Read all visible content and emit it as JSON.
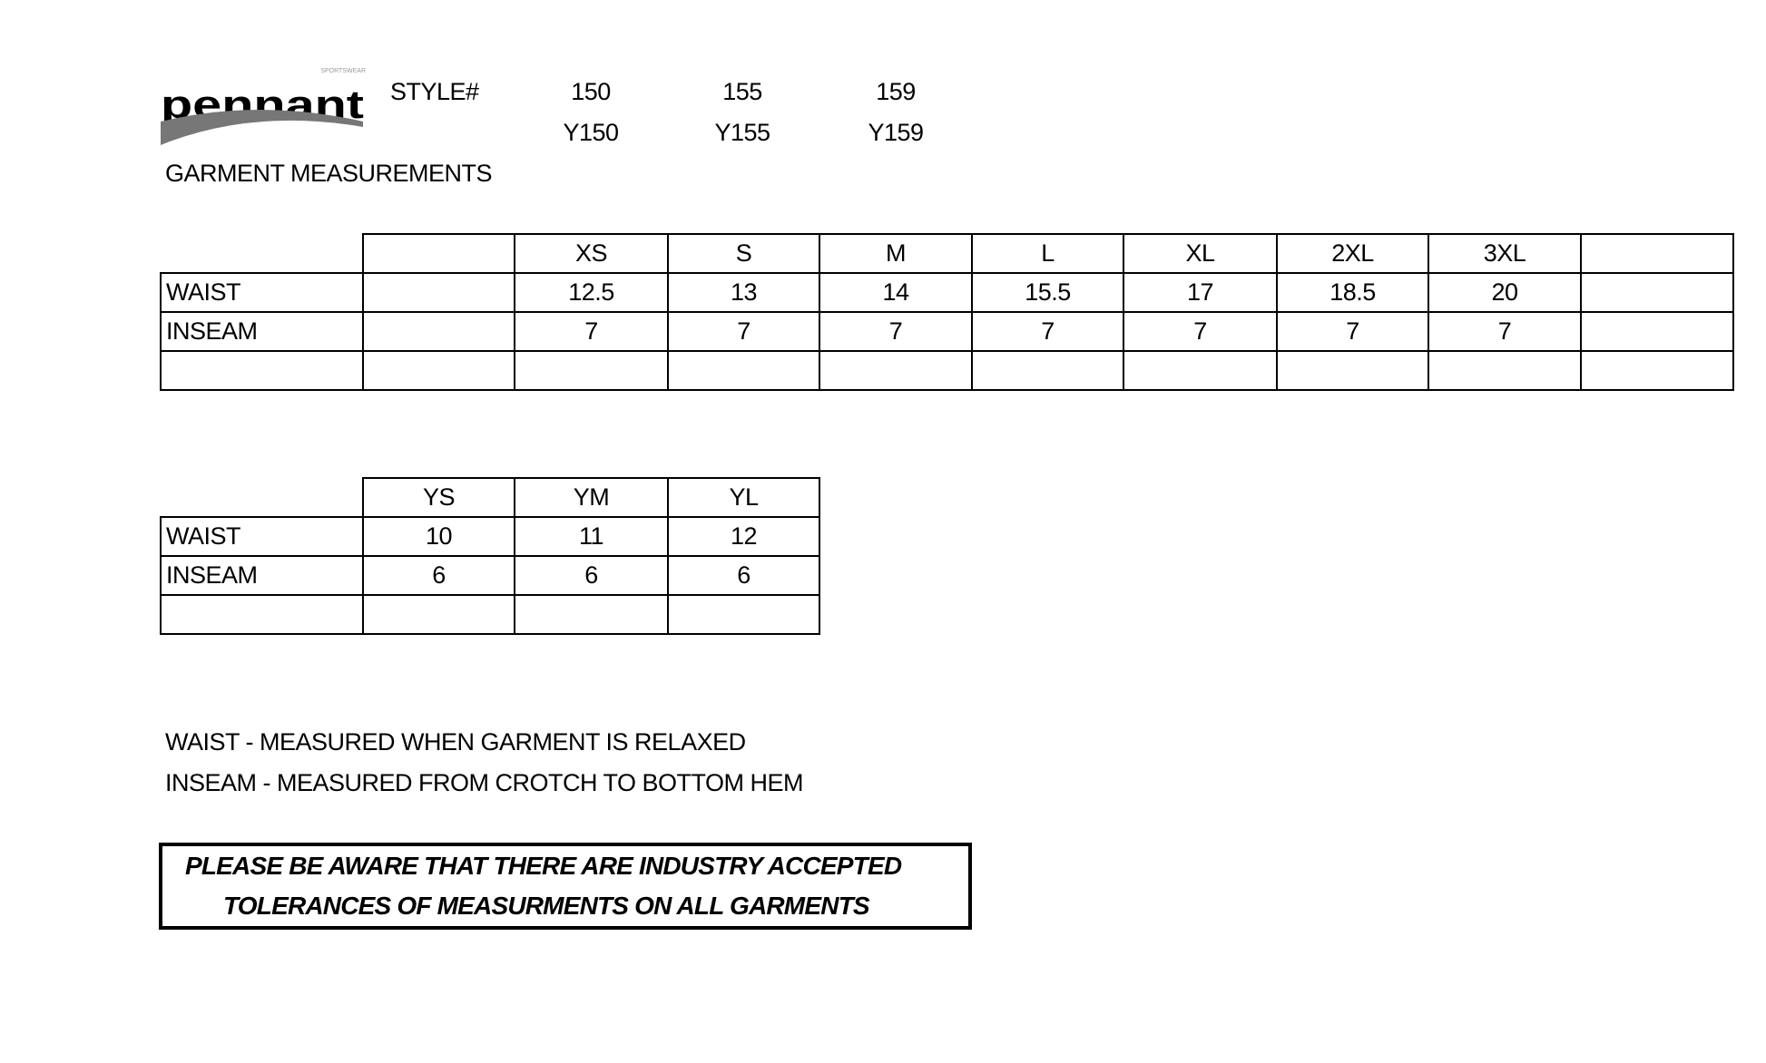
{
  "header": {
    "logo_text": "pennant",
    "logo_subtext": "SPORTSWEAR",
    "style_label": "STYLE#",
    "styles": [
      {
        "adult": "150",
        "youth": "Y150"
      },
      {
        "adult": "155",
        "youth": "Y155"
      },
      {
        "adult": "159",
        "youth": "Y159"
      }
    ],
    "title": "GARMENT MEASUREMENTS"
  },
  "adult_table": {
    "sizes": [
      "",
      "XS",
      "S",
      "M",
      "L",
      "XL",
      "2XL",
      "3XL",
      ""
    ],
    "rows": [
      {
        "label": "WAIST",
        "values": [
          "",
          "12.5",
          "13",
          "14",
          "15.5",
          "17",
          "18.5",
          "20",
          ""
        ]
      },
      {
        "label": "INSEAM",
        "values": [
          "",
          "7",
          "7",
          "7",
          "7",
          "7",
          "7",
          "7",
          ""
        ]
      },
      {
        "label": "",
        "values": [
          "",
          "",
          "",
          "",
          "",
          "",
          "",
          "",
          ""
        ]
      }
    ]
  },
  "youth_table": {
    "sizes": [
      "YS",
      "YM",
      "YL"
    ],
    "rows": [
      {
        "label": "WAIST",
        "values": [
          "10",
          "11",
          "12"
        ]
      },
      {
        "label": "INSEAM",
        "values": [
          "6",
          "6",
          "6"
        ]
      },
      {
        "label": "",
        "values": [
          "",
          "",
          ""
        ]
      }
    ]
  },
  "notes": [
    "WAIST - MEASURED WHEN GARMENT IS RELAXED",
    "INSEAM - MEASURED FROM CROTCH TO BOTTOM HEM"
  ],
  "notice": [
    "PLEASE BE AWARE THAT THERE ARE INDUSTRY ACCEPTED",
    "TOLERANCES OF MEASURMENTS ON ALL GARMENTS"
  ]
}
